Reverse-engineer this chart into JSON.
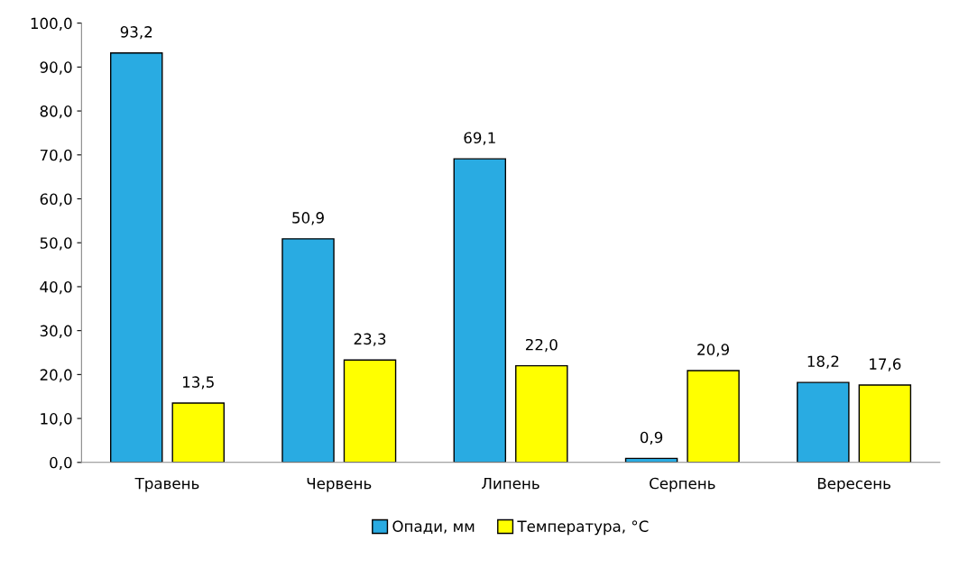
{
  "chart_data": {
    "type": "bar",
    "categories": [
      "Травень",
      "Червень",
      "Липень",
      "Серпень",
      "Вересень"
    ],
    "series": [
      {
        "name": "Опади, мм",
        "color": "#29abe2",
        "values": [
          93.2,
          50.9,
          69.1,
          0.9,
          18.2
        ],
        "value_labels": [
          "93,2",
          "50,9",
          "69,1",
          "0,9",
          "18,2"
        ]
      },
      {
        "name": "Температура, °C",
        "color": "#ffff00",
        "values": [
          13.5,
          23.3,
          22.0,
          20.9,
          17.6
        ],
        "value_labels": [
          "13,5",
          "23,3",
          "22,0",
          "20,9",
          "17,6"
        ]
      }
    ],
    "ylim": [
      0,
      100
    ],
    "yticks": [
      {
        "value": 0,
        "label": "0,0"
      },
      {
        "value": 10,
        "label": "10,0"
      },
      {
        "value": 20,
        "label": "20,0"
      },
      {
        "value": 30,
        "label": "30,0"
      },
      {
        "value": 40,
        "label": "40,0"
      },
      {
        "value": 50,
        "label": "50,0"
      },
      {
        "value": 60,
        "label": "60,0"
      },
      {
        "value": 70,
        "label": "70,0"
      },
      {
        "value": 80,
        "label": "80,0"
      },
      {
        "value": 90,
        "label": "90,0"
      },
      {
        "value": 100,
        "label": "100,0"
      }
    ],
    "grid": false,
    "legend": "bottom"
  }
}
